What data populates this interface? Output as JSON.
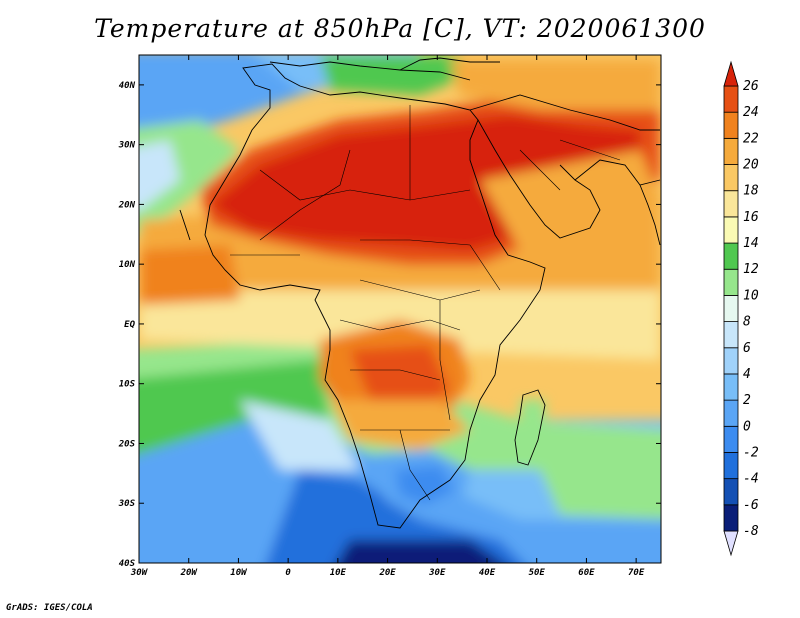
{
  "title": "Temperature at 850hPa [C], VT: 2020061300",
  "credit": "GrADS: IGES/COLA",
  "map": {
    "region": "Africa",
    "lon_range": [
      -30,
      75
    ],
    "lat_range": [
      -40,
      45
    ],
    "x_ticks": [
      {
        "lon": -30,
        "label": "30W"
      },
      {
        "lon": -20,
        "label": "20W"
      },
      {
        "lon": -10,
        "label": "10W"
      },
      {
        "lon": 0,
        "label": "0"
      },
      {
        "lon": 10,
        "label": "10E"
      },
      {
        "lon": 20,
        "label": "20E"
      },
      {
        "lon": 30,
        "label": "30E"
      },
      {
        "lon": 40,
        "label": "40E"
      },
      {
        "lon": 50,
        "label": "50E"
      },
      {
        "lon": 60,
        "label": "60E"
      },
      {
        "lon": 70,
        "label": "70E"
      }
    ],
    "y_ticks": [
      {
        "lat": 40,
        "label": "40N"
      },
      {
        "lat": 30,
        "label": "30N"
      },
      {
        "lat": 20,
        "label": "20N"
      },
      {
        "lat": 10,
        "label": "10N"
      },
      {
        "lat": 0,
        "label": "EQ"
      },
      {
        "lat": -10,
        "label": "10S"
      },
      {
        "lat": -20,
        "label": "20S"
      },
      {
        "lat": -30,
        "label": "30S"
      },
      {
        "lat": -40,
        "label": "40S"
      }
    ]
  },
  "colorbar": {
    "bins": [
      {
        "lo": -10,
        "hi": -8,
        "color": "#e0e0ff"
      },
      {
        "lo": -8,
        "hi": -6,
        "color": "#0a1e78"
      },
      {
        "lo": -6,
        "hi": -4,
        "color": "#1450b4"
      },
      {
        "lo": -4,
        "hi": -2,
        "color": "#2070dc"
      },
      {
        "lo": -2,
        "hi": 0,
        "color": "#3c8cf0"
      },
      {
        "lo": 0,
        "hi": 2,
        "color": "#5aa5f5"
      },
      {
        "lo": 2,
        "hi": 4,
        "color": "#78bef8"
      },
      {
        "lo": 4,
        "hi": 6,
        "color": "#a0d2fa"
      },
      {
        "lo": 6,
        "hi": 8,
        "color": "#c8e6fa"
      },
      {
        "lo": 8,
        "hi": 10,
        "color": "#e6f8f0"
      },
      {
        "lo": 10,
        "hi": 12,
        "color": "#96e68c"
      },
      {
        "lo": 12,
        "hi": 14,
        "color": "#50c850"
      },
      {
        "lo": 14,
        "hi": 16,
        "color": "#fafab4"
      },
      {
        "lo": 16,
        "hi": 18,
        "color": "#fae69a"
      },
      {
        "lo": 18,
        "hi": 20,
        "color": "#fac864"
      },
      {
        "lo": 20,
        "hi": 22,
        "color": "#f5aa3c"
      },
      {
        "lo": 22,
        "hi": 24,
        "color": "#f0821e"
      },
      {
        "lo": 24,
        "hi": 26,
        "color": "#e65014"
      },
      {
        "lo": 26,
        "hi": 28,
        "color": "#d7230a"
      }
    ],
    "labels": [
      "26",
      "24",
      "22",
      "20",
      "18",
      "16",
      "14",
      "12",
      "10",
      "8",
      "6",
      "4",
      "2",
      "0",
      "-2",
      "-4",
      "-6",
      "-8"
    ]
  }
}
